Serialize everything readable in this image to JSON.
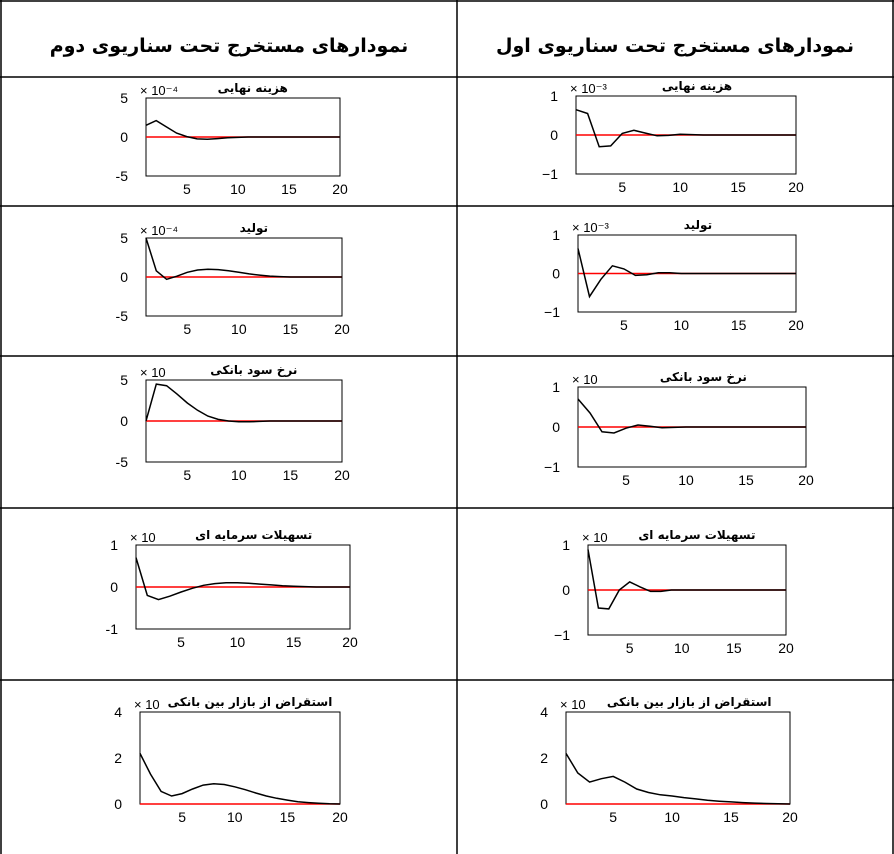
{
  "headers": {
    "right": "نمودارهای مستخرج تحت سناریوی اول",
    "left": "نمودارهای مستخرج تحت سناریوی دوم"
  },
  "chart_data": [
    {
      "type": "line",
      "title": "هزینه نهایی",
      "scenario": "اول",
      "exponent": "× 10⁻³",
      "ylim": [
        -1,
        1
      ],
      "yticks": [
        "1",
        "0",
        "−1"
      ],
      "xlim": [
        1,
        20
      ],
      "xticks": [
        "5",
        "10",
        "15",
        "20"
      ],
      "series": [
        {
          "x": [
            1,
            2,
            3,
            4,
            5,
            6,
            7,
            8,
            9,
            10,
            11,
            12,
            13,
            14,
            15,
            16,
            17,
            18,
            19,
            20
          ],
          "values": [
            0.65,
            0.55,
            -0.3,
            -0.28,
            0.04,
            0.12,
            0.05,
            -0.02,
            -0.01,
            0.02,
            0.01,
            0,
            0,
            0,
            0,
            0,
            0,
            0,
            0,
            0
          ]
        }
      ]
    },
    {
      "type": "line",
      "title": "هزینه نهایی",
      "scenario": "دوم",
      "exponent": "× 10⁻⁴",
      "ylim": [
        -5,
        5
      ],
      "yticks": [
        "5",
        "0",
        "-5"
      ],
      "xlim": [
        1,
        20
      ],
      "xticks": [
        "5",
        "10",
        "15",
        "20"
      ],
      "series": [
        {
          "x": [
            1,
            2,
            3,
            4,
            5,
            6,
            7,
            8,
            9,
            10,
            11,
            12,
            13,
            14,
            15,
            16,
            17,
            18,
            19,
            20
          ],
          "values": [
            1.5,
            2.1,
            1.3,
            0.5,
            0.05,
            -0.25,
            -0.3,
            -0.2,
            -0.1,
            -0.05,
            0,
            0,
            0,
            0,
            0,
            0,
            0,
            0,
            0,
            0
          ]
        }
      ]
    },
    {
      "type": "line",
      "title": "تولید",
      "scenario": "اول",
      "exponent": "× 10⁻³",
      "ylim": [
        -1,
        1
      ],
      "yticks": [
        "1",
        "0",
        "−1"
      ],
      "xlim": [
        1,
        20
      ],
      "xticks": [
        "5",
        "10",
        "15",
        "20"
      ],
      "series": [
        {
          "x": [
            1,
            2,
            3,
            4,
            5,
            6,
            7,
            8,
            9,
            10,
            11,
            12,
            13,
            14,
            15,
            16,
            17,
            18,
            19,
            20
          ],
          "values": [
            0.65,
            -0.6,
            -0.15,
            0.2,
            0.12,
            -0.05,
            -0.03,
            0.02,
            0.02,
            0,
            0,
            0,
            0,
            0,
            0,
            0,
            0,
            0,
            0,
            0
          ]
        }
      ]
    },
    {
      "type": "line",
      "title": "تولید",
      "scenario": "دوم",
      "exponent": "× 10⁻⁴",
      "ylim": [
        -5,
        5
      ],
      "yticks": [
        "5",
        "0",
        "-5"
      ],
      "xlim": [
        1,
        20
      ],
      "xticks": [
        "5",
        "10",
        "15",
        "20"
      ],
      "series": [
        {
          "x": [
            1,
            2,
            3,
            4,
            5,
            6,
            7,
            8,
            9,
            10,
            11,
            12,
            13,
            14,
            15,
            16,
            17,
            18,
            19,
            20
          ],
          "values": [
            5,
            0.8,
            -0.3,
            0.1,
            0.6,
            0.9,
            1.0,
            0.95,
            0.8,
            0.6,
            0.4,
            0.25,
            0.12,
            0.05,
            0,
            0,
            0,
            0,
            0,
            0
          ]
        }
      ]
    },
    {
      "type": "line",
      "title": "نرخ سود بانکی",
      "scenario": "اول",
      "exponent": "× 10",
      "ylim": [
        -1,
        1
      ],
      "yticks": [
        "1",
        "0",
        "−1"
      ],
      "xlim": [
        1,
        20
      ],
      "xticks": [
        "5",
        "10",
        "15",
        "20"
      ],
      "series": [
        {
          "x": [
            1,
            2,
            3,
            4,
            5,
            6,
            7,
            8,
            9,
            10,
            11,
            12,
            13,
            14,
            15,
            16,
            17,
            18,
            19,
            20
          ],
          "values": [
            0.7,
            0.35,
            -0.12,
            -0.15,
            -0.03,
            0.05,
            0.02,
            -0.02,
            -0.01,
            0,
            0,
            0,
            0,
            0,
            0,
            0,
            0,
            0,
            0,
            0
          ]
        }
      ]
    },
    {
      "type": "line",
      "title": "نرخ سود بانکی",
      "scenario": "دوم",
      "exponent": "× 10",
      "ylim": [
        -5,
        5
      ],
      "yticks": [
        "5",
        "0",
        "-5"
      ],
      "xlim": [
        1,
        20
      ],
      "xticks": [
        "5",
        "10",
        "15",
        "20"
      ],
      "series": [
        {
          "x": [
            1,
            2,
            3,
            4,
            5,
            6,
            7,
            8,
            9,
            10,
            11,
            12,
            13,
            14,
            15,
            16,
            17,
            18,
            19,
            20
          ],
          "values": [
            0,
            4.5,
            4.3,
            3.3,
            2.2,
            1.3,
            0.6,
            0.2,
            0,
            -0.1,
            -0.1,
            -0.05,
            0,
            0,
            0,
            0,
            0,
            0,
            0,
            0
          ]
        }
      ]
    },
    {
      "type": "line",
      "title": "تسهیلات سرمایه ای",
      "scenario": "اول",
      "exponent": "× 10",
      "ylim": [
        -1,
        1
      ],
      "yticks": [
        "1",
        "0",
        "−1"
      ],
      "xlim": [
        1,
        20
      ],
      "xticks": [
        "5",
        "10",
        "15",
        "20"
      ],
      "series": [
        {
          "x": [
            1,
            2,
            3,
            4,
            5,
            6,
            7,
            8,
            9,
            10,
            11,
            12,
            13,
            14,
            15,
            16,
            17,
            18,
            19,
            20
          ],
          "values": [
            0.9,
            -0.4,
            -0.42,
            0.0,
            0.18,
            0.07,
            -0.03,
            -0.03,
            0,
            0,
            0,
            0,
            0,
            0,
            0,
            0,
            0,
            0,
            0,
            0
          ]
        }
      ]
    },
    {
      "type": "line",
      "title": "تسهیلات سرمایه ای",
      "scenario": "دوم",
      "exponent": "× 10",
      "ylim": [
        -1,
        1
      ],
      "yticks": [
        "1",
        "0",
        "-1"
      ],
      "xlim": [
        1,
        20
      ],
      "xticks": [
        "5",
        "10",
        "15",
        "20"
      ],
      "series": [
        {
          "x": [
            1,
            2,
            3,
            4,
            5,
            6,
            7,
            8,
            9,
            10,
            11,
            12,
            13,
            14,
            15,
            16,
            17,
            18,
            19,
            20
          ],
          "values": [
            0.7,
            -0.2,
            -0.3,
            -0.22,
            -0.12,
            -0.03,
            0.04,
            0.08,
            0.1,
            0.1,
            0.09,
            0.07,
            0.05,
            0.03,
            0.02,
            0.01,
            0,
            0,
            0,
            0
          ]
        }
      ]
    },
    {
      "type": "line",
      "title": "استقراض از بازار بین بانکی",
      "scenario": "اول",
      "exponent": "× 10",
      "ylim": [
        0,
        4
      ],
      "yticks": [
        "4",
        "2",
        "0"
      ],
      "xlim": [
        1,
        20
      ],
      "xticks": [
        "5",
        "10",
        "15",
        "20"
      ],
      "series": [
        {
          "x": [
            1,
            2,
            3,
            4,
            5,
            6,
            7,
            8,
            9,
            10,
            11,
            12,
            13,
            14,
            15,
            16,
            17,
            18,
            19,
            20
          ],
          "values": [
            2.2,
            1.35,
            0.95,
            1.1,
            1.2,
            0.95,
            0.65,
            0.5,
            0.4,
            0.35,
            0.28,
            0.22,
            0.16,
            0.12,
            0.09,
            0.06,
            0.04,
            0.02,
            0.01,
            0
          ]
        }
      ]
    },
    {
      "type": "line",
      "title": "استقراض از بازار بین بانکی",
      "scenario": "دوم",
      "exponent": "× 10",
      "ylim": [
        0,
        4
      ],
      "yticks": [
        "4",
        "2",
        "0"
      ],
      "xlim": [
        1,
        20
      ],
      "xticks": [
        "5",
        "10",
        "15",
        "20"
      ],
      "series": [
        {
          "x": [
            1,
            2,
            3,
            4,
            5,
            6,
            7,
            8,
            9,
            10,
            11,
            12,
            13,
            14,
            15,
            16,
            17,
            18,
            19,
            20
          ],
          "values": [
            2.2,
            1.3,
            0.55,
            0.35,
            0.45,
            0.65,
            0.82,
            0.88,
            0.85,
            0.75,
            0.62,
            0.48,
            0.35,
            0.25,
            0.17,
            0.1,
            0.06,
            0.03,
            0.01,
            0
          ]
        }
      ]
    }
  ],
  "colors": {
    "line": "#000000",
    "zero_line": "#ff0000",
    "grid_border": "#000000"
  }
}
